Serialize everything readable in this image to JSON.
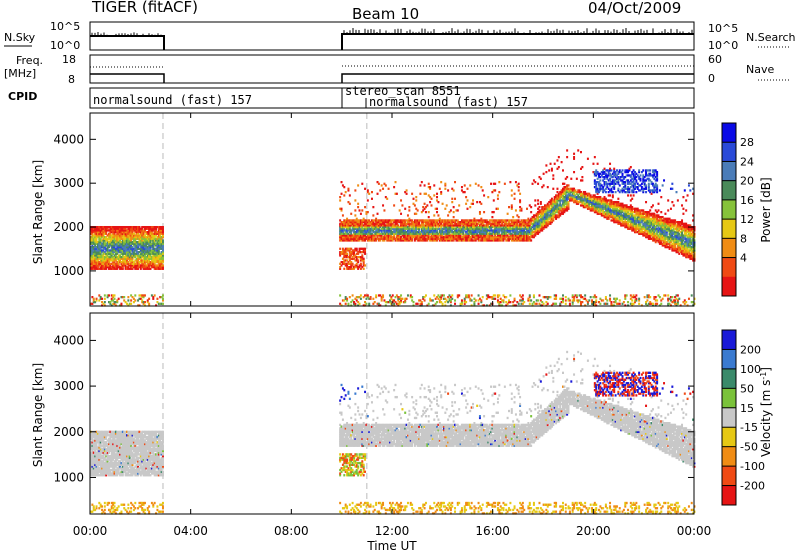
{
  "header": {
    "title": "TIGER (fitACF)",
    "beam": "Beam 10",
    "date": "04/Oct/2009"
  },
  "panels": {
    "nsky": {
      "label": "N.Sky",
      "left_ticks": [
        "10^5",
        "10^0"
      ],
      "right_ticks": [
        "10^5",
        "10^0"
      ],
      "right_label": "N.Search"
    },
    "freq": {
      "label_line1": "Freq.",
      "label_line2": "[MHz]",
      "left_ticks": [
        "18",
        "8"
      ],
      "right_ticks": [
        "60",
        "0"
      ],
      "right_label": "Nave"
    },
    "cpid": {
      "label": "CPID",
      "entries": [
        "normalsound (fast) 157",
        "stereo_scan 8551",
        "normalsound (fast) 157"
      ]
    }
  },
  "power_panel": {
    "colorbar_label": "Power [dB]",
    "colorbar_ticks": [
      "28",
      "24",
      "20",
      "16",
      "12",
      "8",
      "4"
    ],
    "colors": [
      "#0a0ae6",
      "#2a4ad8",
      "#4a7cb8",
      "#4a8a5a",
      "#86c23a",
      "#e6c814",
      "#f08c14",
      "#f04a14",
      "#e61414"
    ]
  },
  "velocity_panel": {
    "colorbar_label": "Velocity [m s^-1]",
    "colorbar_ticks": [
      "200",
      "100",
      "50",
      "15",
      "-15",
      "-50",
      "-100",
      "-200"
    ],
    "colors": [
      "#1a1ad8",
      "#3a7ad0",
      "#3a8a6a",
      "#7ac23a",
      "#c8c8c8",
      "#e6c814",
      "#f08c14",
      "#f04a14",
      "#e61414"
    ]
  },
  "chart_data": {
    "type": "heatmap",
    "title": "TIGER (fitACF)",
    "xlabel": "Time UT",
    "ylabel": "Slant Range [km]",
    "x_ticks": [
      "00:00",
      "04:00",
      "08:00",
      "12:00",
      "16:00",
      "20:00",
      "00:00"
    ],
    "y_ticks": [
      1000,
      2000,
      3000,
      4000
    ],
    "xlim_hours": [
      0,
      24
    ],
    "ylim_km": [
      200,
      4600
    ],
    "data_gaps_hours": [
      [
        2.9,
        9.85
      ]
    ],
    "power_echo_bands": [
      {
        "t_start": 0.0,
        "t_end": 2.9,
        "range_km": [
          950,
          2050
        ],
        "peak_db": 28
      },
      {
        "t_start": 9.85,
        "t_end": 18.0,
        "range_km": [
          1600,
          2200
        ],
        "peak_db": 24
      },
      {
        "t_start": 18.0,
        "t_end": 24.0,
        "range_km": [
          1100,
          2900
        ],
        "peak_db": 28
      }
    ],
    "velocity_range_ms": [
      -200,
      200
    ]
  },
  "axes": {
    "xlabel": "Time UT",
    "ylabel": "Slant Range [km]"
  }
}
